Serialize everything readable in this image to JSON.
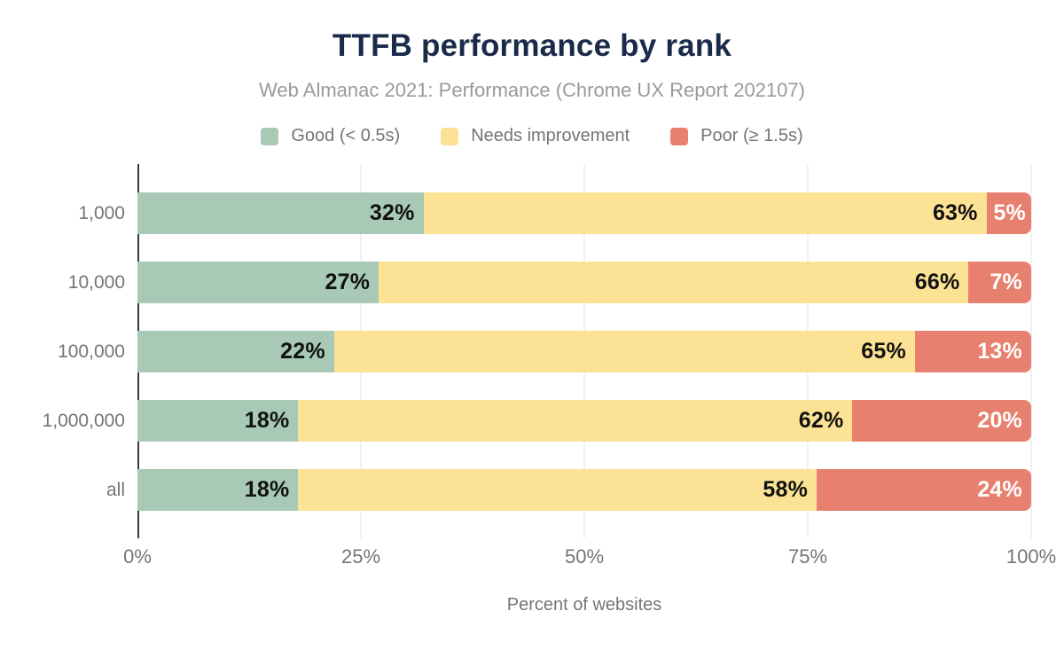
{
  "chart_data": {
    "type": "bar",
    "orientation": "horizontal",
    "stacked": true,
    "title": "TTFB performance by rank",
    "subtitle": "Web Almanac 2021: Performance (Chrome UX Report 202107)",
    "xlabel": "Percent of websites",
    "x_ticks": [
      "0%",
      "25%",
      "50%",
      "75%",
      "100%"
    ],
    "x_tick_positions": [
      0,
      25,
      50,
      75,
      100
    ],
    "xlim": [
      0,
      100
    ],
    "value_suffix": "%",
    "grid": true,
    "legend_position": "top",
    "categories": [
      "1,000",
      "10,000",
      "100,000",
      "1,000,000",
      "all"
    ],
    "series": [
      {
        "key": "good",
        "name": "Good (< 0.5s)",
        "color": "#a7c9b6",
        "label_color": "#111111",
        "values": [
          32,
          27,
          22,
          18,
          18
        ]
      },
      {
        "key": "needs-improvement",
        "name": "Needs improvement",
        "color": "#fce294",
        "label_color": "#111111",
        "values": [
          63,
          66,
          65,
          62,
          58
        ]
      },
      {
        "key": "poor",
        "name": "Poor (≥ 1.5s)",
        "color": "#e8806f",
        "label_color": "#ffffff",
        "values": [
          5,
          7,
          13,
          20,
          24
        ]
      }
    ]
  },
  "colors": {
    "title": "#1a2b49",
    "subtitle": "#9a9a9a",
    "legend_text": "#757575",
    "axis_text": "#757575",
    "axis_line": "#3a3a3a",
    "gridline": "#f1f1f1",
    "background": "#ffffff"
  }
}
